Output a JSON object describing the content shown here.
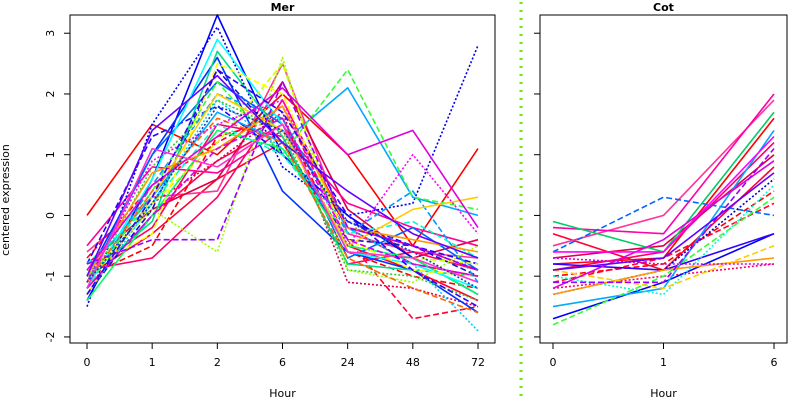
{
  "chart_data": [
    {
      "type": "line",
      "title": "Mer",
      "xlabel": "Hour",
      "ylabel": "centered expression",
      "categories": [
        "0",
        "1",
        "2",
        "6",
        "24",
        "48",
        "72"
      ],
      "ylim": [
        -2.1,
        3.3
      ],
      "yticks": [
        -2,
        -1,
        0,
        1,
        2,
        3
      ],
      "grid": false,
      "series": [
        {
          "values": [
            0.0,
            1.5,
            1.0,
            2.0,
            1.0,
            -0.5,
            1.1
          ],
          "color": "#ff0000",
          "dash": "solid"
        },
        {
          "values": [
            -1.0,
            -0.3,
            0.6,
            1.2,
            -0.5,
            -0.9,
            -1.4
          ],
          "color": "#ff0033",
          "dash": "solid"
        },
        {
          "values": [
            -0.9,
            -0.7,
            0.3,
            1.9,
            -0.2,
            -0.5,
            -0.9
          ],
          "color": "#ff0066",
          "dash": "solid"
        },
        {
          "values": [
            -0.6,
            0.3,
            0.4,
            2.5,
            -0.3,
            -0.6,
            -0.7
          ],
          "color": "#ff3399",
          "dash": "solid"
        },
        {
          "values": [
            -1.2,
            0.0,
            0.9,
            1.5,
            -0.2,
            -0.8,
            -1.0
          ],
          "color": "#ff0055",
          "dash": "solid"
        },
        {
          "values": [
            -0.8,
            0.1,
            0.6,
            2.2,
            0.1,
            -0.7,
            -0.4
          ],
          "color": "#dd0044",
          "dash": "solid"
        },
        {
          "values": [
            -1.0,
            -0.5,
            1.3,
            1.6,
            -0.6,
            -1.0,
            -1.2
          ],
          "color": "#ff0000",
          "dash": "dashed"
        },
        {
          "values": [
            -0.7,
            0.5,
            1.2,
            1.8,
            -0.4,
            -1.7,
            -1.5
          ],
          "color": "#ff0033",
          "dash": "dashed"
        },
        {
          "values": [
            -1.1,
            0.2,
            0.9,
            1.7,
            -1.1,
            -1.2,
            -1.5
          ],
          "color": "#e0004a",
          "dash": "dotted"
        },
        {
          "values": [
            -0.5,
            0.8,
            0.7,
            1.4,
            0.2,
            -0.2,
            -0.5
          ],
          "color": "#ff0099",
          "dash": "solid"
        },
        {
          "values": [
            -0.9,
            -0.2,
            1.5,
            1.3,
            -0.8,
            -0.6,
            -0.9
          ],
          "color": "#ff0066",
          "dash": "solid"
        },
        {
          "values": [
            -1.4,
            0.6,
            3.3,
            1.0,
            0.0,
            -0.7,
            -1.3
          ],
          "color": "#0000ff",
          "dash": "solid"
        },
        {
          "values": [
            -1.5,
            1.5,
            3.1,
            0.8,
            0.0,
            0.2,
            2.8
          ],
          "color": "#0000ee",
          "dash": "dotted"
        },
        {
          "values": [
            -1.3,
            0.1,
            2.4,
            1.2,
            -0.4,
            -0.5,
            -1.0
          ],
          "color": "#1111cc",
          "dash": "dashed"
        },
        {
          "values": [
            -1.0,
            1.0,
            2.6,
            0.4,
            -0.6,
            -0.9,
            -1.6
          ],
          "color": "#0033ff",
          "dash": "solid"
        },
        {
          "values": [
            -0.8,
            1.3,
            1.8,
            1.0,
            -0.1,
            -0.5,
            -0.8
          ],
          "color": "#2200ff",
          "dash": "dashed"
        },
        {
          "values": [
            -1.1,
            1.0,
            2.2,
            1.5,
            -0.7,
            -0.2,
            -0.9
          ],
          "color": "#0066ff",
          "dash": "solid"
        },
        {
          "values": [
            -0.9,
            0.3,
            1.7,
            1.2,
            2.1,
            0.3,
            0.0
          ],
          "color": "#00aaff",
          "dash": "solid"
        },
        {
          "values": [
            -1.3,
            0.2,
            1.9,
            1.1,
            -0.2,
            -0.8,
            -1.9
          ],
          "color": "#00ccff",
          "dash": "dotted"
        },
        {
          "values": [
            -1.2,
            0.5,
            2.0,
            1.6,
            -0.3,
            0.4,
            -1.1
          ],
          "color": "#0099ff",
          "dash": "dashed"
        },
        {
          "values": [
            -1.2,
            0.4,
            2.2,
            1.0,
            2.4,
            0.3,
            0.1
          ],
          "color": "#33ff33",
          "dash": "dashed"
        },
        {
          "values": [
            -1.4,
            0.0,
            1.4,
            1.1,
            -0.5,
            -0.7,
            -1.3
          ],
          "color": "#00ff66",
          "dash": "solid"
        },
        {
          "values": [
            -1.0,
            -0.1,
            2.7,
            1.3,
            -0.8,
            -0.9,
            -1.0
          ],
          "color": "#00dd88",
          "dash": "solid"
        },
        {
          "values": [
            -1.2,
            0.8,
            1.9,
            1.4,
            -0.9,
            -1.0,
            -1.4
          ],
          "color": "#33cc33",
          "dash": "dotted"
        },
        {
          "values": [
            -0.8,
            0.2,
            1.5,
            1.0,
            -0.3,
            -0.1,
            -0.7
          ],
          "color": "#00ffcc",
          "dash": "dashed"
        },
        {
          "values": [
            -1.2,
            0.6,
            2.9,
            1.5,
            -0.6,
            -0.8,
            -1.2
          ],
          "color": "#00ffff",
          "dash": "solid"
        },
        {
          "values": [
            -1.0,
            0.1,
            -0.6,
            2.6,
            -0.9,
            -1.1,
            -0.5
          ],
          "color": "#99ff00",
          "dash": "dotted"
        },
        {
          "values": [
            -1.1,
            0.2,
            1.2,
            2.5,
            -0.6,
            -0.7,
            -0.8
          ],
          "color": "#ccff00",
          "dash": "dashed"
        },
        {
          "values": [
            -0.9,
            -0.3,
            2.5,
            2.0,
            -0.4,
            -0.9,
            -1.0
          ],
          "color": "#ffff00",
          "dash": "dashed"
        },
        {
          "values": [
            -1.3,
            0.3,
            2.0,
            1.4,
            -0.5,
            0.1,
            0.3
          ],
          "color": "#ffcc00",
          "dash": "solid"
        },
        {
          "values": [
            -1.0,
            0.7,
            1.1,
            1.8,
            -0.2,
            -0.4,
            -0.6
          ],
          "color": "#ff9900",
          "dash": "solid"
        },
        {
          "values": [
            -1.1,
            0.4,
            1.6,
            1.2,
            -0.7,
            -1.2,
            -1.6
          ],
          "color": "#ff6600",
          "dash": "dashed"
        },
        {
          "values": [
            -0.9,
            0.5,
            1.3,
            2.1,
            1.0,
            1.4,
            -0.2
          ],
          "color": "#dd00dd",
          "dash": "solid"
        },
        {
          "values": [
            -1.2,
            0.0,
            1.1,
            1.6,
            -0.4,
            -0.8,
            -1.0
          ],
          "color": "#cc00ff",
          "dash": "dashed"
        },
        {
          "values": [
            -0.8,
            -0.4,
            -0.4,
            2.2,
            -0.2,
            -0.5,
            -0.9
          ],
          "color": "#9900ff",
          "dash": "dashed"
        },
        {
          "values": [
            -1.0,
            1.4,
            2.3,
            1.2,
            0.4,
            -0.3,
            -0.7
          ],
          "color": "#6600ff",
          "dash": "solid"
        },
        {
          "values": [
            -1.1,
            0.9,
            1.5,
            1.9,
            -0.5,
            1.0,
            -0.3
          ],
          "color": "#ff00ff",
          "dash": "dotted"
        },
        {
          "values": [
            -1.2,
            1.1,
            0.8,
            1.5,
            -0.6,
            -0.7,
            -1.1
          ],
          "color": "#ff33cc",
          "dash": "solid"
        },
        {
          "values": [
            -1.3,
            0.3,
            2.4,
            1.7,
            0.0,
            -0.9,
            -1.5
          ],
          "color": "#3300ff",
          "dash": "dashed"
        },
        {
          "values": [
            -1.1,
            0.2,
            1.8,
            1.4,
            -0.1,
            -0.6,
            -1.2
          ],
          "color": "#0044cc",
          "dash": "dotted"
        }
      ]
    },
    {
      "type": "line",
      "title": "Cot",
      "xlabel": "Hour",
      "ylabel": "",
      "categories": [
        "0",
        "1",
        "6"
      ],
      "ylim": [
        -2.1,
        3.3
      ],
      "grid": false,
      "series": [
        {
          "values": [
            -0.8,
            -0.7,
            1.6
          ],
          "color": "#ff0000",
          "dash": "solid"
        },
        {
          "values": [
            -0.3,
            -0.9,
            0.8
          ],
          "color": "#ff0033",
          "dash": "solid"
        },
        {
          "values": [
            -0.9,
            -0.6,
            1.2
          ],
          "color": "#ff0066",
          "dash": "solid"
        },
        {
          "values": [
            -0.5,
            0.0,
            1.9
          ],
          "color": "#ff3399",
          "dash": "solid"
        },
        {
          "values": [
            -1.0,
            -0.8,
            0.4
          ],
          "color": "#ff0000",
          "dash": "dashed"
        },
        {
          "values": [
            -1.2,
            -1.0,
            -0.8
          ],
          "color": "#ff0066",
          "dash": "dotted"
        },
        {
          "values": [
            -0.7,
            -0.5,
            1.0
          ],
          "color": "#dd0044",
          "dash": "solid"
        },
        {
          "values": [
            -1.1,
            -0.7,
            0.2
          ],
          "color": "#ff0033",
          "dash": "dashed"
        },
        {
          "values": [
            -0.2,
            -0.3,
            2.0
          ],
          "color": "#ff00aa",
          "dash": "solid"
        },
        {
          "values": [
            -1.7,
            -1.1,
            -0.3
          ],
          "color": "#0000ff",
          "dash": "solid"
        },
        {
          "values": [
            -0.6,
            0.3,
            0.0
          ],
          "color": "#0066ff",
          "dash": "dashed"
        },
        {
          "values": [
            -1.3,
            -0.9,
            0.6
          ],
          "color": "#0000cc",
          "dash": "dotted"
        },
        {
          "values": [
            -1.5,
            -1.2,
            1.4
          ],
          "color": "#00aaff",
          "dash": "solid"
        },
        {
          "values": [
            -0.8,
            -0.9,
            -0.3
          ],
          "color": "#3300ff",
          "dash": "solid"
        },
        {
          "values": [
            -1.8,
            -1.0,
            0.3
          ],
          "color": "#33ff33",
          "dash": "dashed"
        },
        {
          "values": [
            -0.1,
            -0.6,
            1.7
          ],
          "color": "#00cc66",
          "dash": "solid"
        },
        {
          "values": [
            -1.0,
            -1.3,
            0.5
          ],
          "color": "#00ffcc",
          "dash": "dotted"
        },
        {
          "values": [
            -1.3,
            -0.9,
            -0.7
          ],
          "color": "#ff9900",
          "dash": "solid"
        },
        {
          "values": [
            -0.9,
            -1.2,
            -0.5
          ],
          "color": "#ffcc00",
          "dash": "dashed"
        },
        {
          "values": [
            -1.2,
            -0.4,
            0.9
          ],
          "color": "#dd00dd",
          "dash": "solid"
        },
        {
          "values": [
            -0.7,
            -0.8,
            -0.8
          ],
          "color": "#cc00ff",
          "dash": "dotted"
        },
        {
          "values": [
            -1.1,
            -1.1,
            1.1
          ],
          "color": "#9900ff",
          "dash": "dashed"
        },
        {
          "values": [
            -0.6,
            -0.6,
            1.3
          ],
          "color": "#ff00ff",
          "dash": "solid"
        },
        {
          "values": [
            -0.9,
            -0.7,
            0.7
          ],
          "color": "#6600ff",
          "dash": "solid"
        }
      ]
    }
  ]
}
